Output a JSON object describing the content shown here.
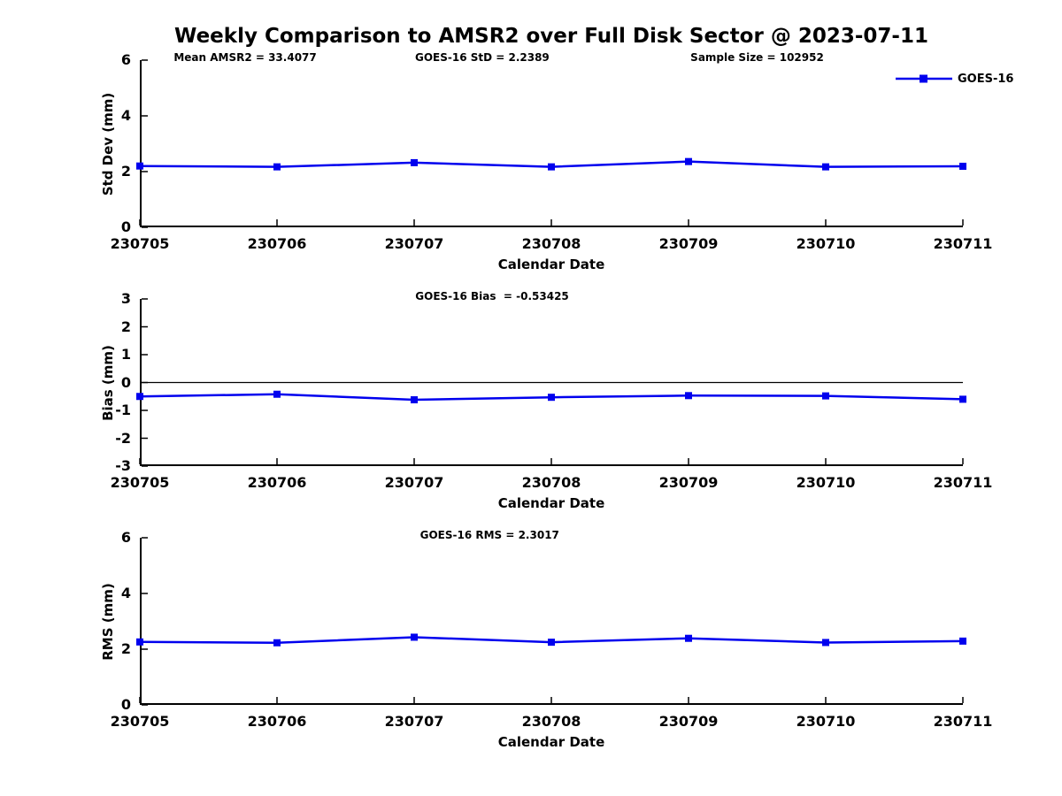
{
  "title": "Weekly Comparison to AMSR2 over Full Disk Sector @ 2023-07-11",
  "xlabel": "Calendar Date",
  "categories": [
    "230705",
    "230706",
    "230707",
    "230708",
    "230709",
    "230710",
    "230711"
  ],
  "legend": {
    "label": "GOES-16",
    "position": "top-right-inside",
    "boxed": false
  },
  "colors": {
    "series": "#0000EE",
    "axis": "#000000",
    "text": "#000000",
    "background": "#FFFFFF"
  },
  "chart_data": [
    {
      "type": "line",
      "name": "std-dev-panel",
      "ylabel": "Std Dev (mm)",
      "ylim": [
        0,
        6
      ],
      "yticks": [
        0,
        2,
        4,
        6
      ],
      "grid": false,
      "marker": "square",
      "series": [
        {
          "name": "GOES-16",
          "values": [
            2.2,
            2.17,
            2.32,
            2.17,
            2.36,
            2.17,
            2.19
          ]
        }
      ],
      "annotations": [
        {
          "text": "Mean AMSR2 = 33.4077"
        },
        {
          "text": "GOES-16 StD = 2.2389"
        },
        {
          "text": "Sample Size = 102952"
        }
      ]
    },
    {
      "type": "line",
      "name": "bias-panel",
      "ylabel": "Bias (mm)",
      "ylim": [
        -3,
        3
      ],
      "yticks": [
        3,
        2,
        1,
        0,
        -1,
        -2,
        -3
      ],
      "zero_line": true,
      "grid": false,
      "marker": "square",
      "series": [
        {
          "name": "GOES-16",
          "values": [
            -0.5,
            -0.42,
            -0.62,
            -0.53,
            -0.47,
            -0.48,
            -0.6
          ]
        }
      ],
      "annotations": [
        {
          "text": "GOES-16 Bias  = -0.53425"
        }
      ]
    },
    {
      "type": "line",
      "name": "rms-panel",
      "ylabel": "RMS (mm)",
      "ylim": [
        0,
        6
      ],
      "yticks": [
        0,
        2,
        4,
        6
      ],
      "grid": false,
      "marker": "square",
      "series": [
        {
          "name": "GOES-16",
          "values": [
            2.26,
            2.23,
            2.43,
            2.25,
            2.39,
            2.24,
            2.29
          ]
        }
      ],
      "annotations": [
        {
          "text": "GOES-16 RMS = 2.3017"
        }
      ]
    }
  ]
}
